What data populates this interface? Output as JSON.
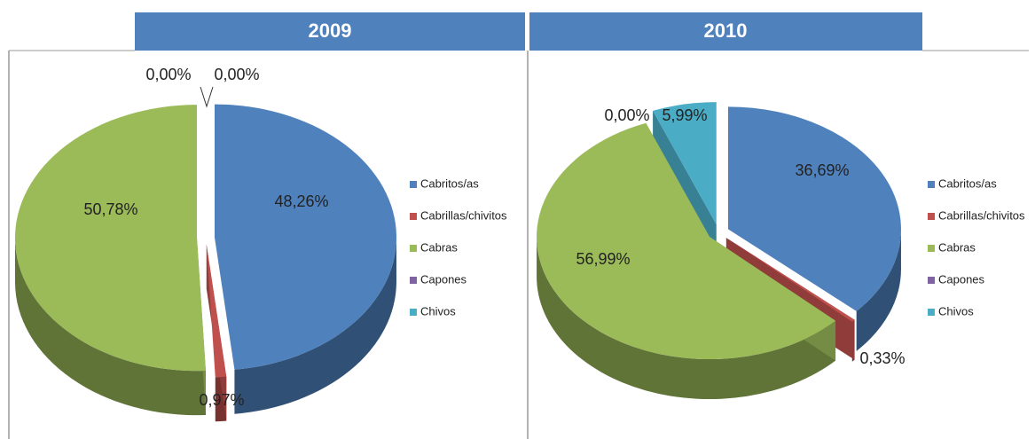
{
  "chart_data": [
    {
      "type": "pie",
      "title": "2009",
      "categories": [
        "Cabritos/as",
        "Cabrillas/chivitos",
        "Cabras",
        "Capones",
        "Chivos"
      ],
      "values": [
        48.26,
        0.97,
        50.78,
        0,
        0
      ],
      "value_labels": [
        "48,26%",
        "0,97%",
        "50,78%",
        "0,00%",
        "0,00%"
      ],
      "colors": [
        "#4f81bd",
        "#c0504d",
        "#9bbb59",
        "#8064a2",
        "#4bacc6"
      ]
    },
    {
      "type": "pie",
      "title": "2010",
      "categories": [
        "Cabritos/as",
        "Cabrillas/chivitos",
        "Cabras",
        "Capones",
        "Chivos"
      ],
      "values": [
        36.69,
        0.33,
        56.99,
        0,
        5.99
      ],
      "value_labels": [
        "36,69%",
        "0,33%",
        "56,99%",
        "0,00%",
        "5,99%"
      ],
      "colors": [
        "#4f81bd",
        "#c0504d",
        "#9bbb59",
        "#8064a2",
        "#4bacc6"
      ]
    }
  ]
}
